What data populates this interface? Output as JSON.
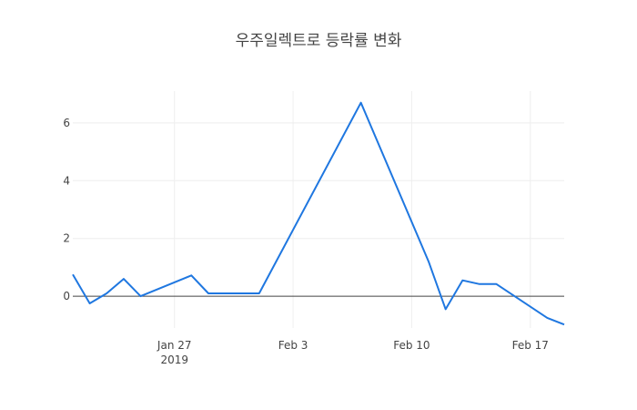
{
  "chart_data": {
    "type": "line",
    "title": "우주일렉트로 등락률 변화",
    "xlabel": "",
    "ylabel": "",
    "x_range": [
      "2019-01-21",
      "2019-02-19"
    ],
    "y_range": [
      -1.1,
      7.1
    ],
    "x_ticks": [
      {
        "date": "2019-01-27",
        "label": "Jan 27",
        "sublabel": "2019"
      },
      {
        "date": "2019-02-03",
        "label": "Feb 3",
        "sublabel": ""
      },
      {
        "date": "2019-02-10",
        "label": "Feb 10",
        "sublabel": ""
      },
      {
        "date": "2019-02-17",
        "label": "Feb 17",
        "sublabel": ""
      }
    ],
    "y_ticks": [
      0,
      2,
      4,
      6
    ],
    "grid": true,
    "series": [
      {
        "color": "#1f77e0",
        "points": [
          {
            "x": "2019-01-21",
            "y": 0.75
          },
          {
            "x": "2019-01-22",
            "y": -0.25
          },
          {
            "x": "2019-01-23",
            "y": 0.1
          },
          {
            "x": "2019-01-24",
            "y": 0.6
          },
          {
            "x": "2019-01-25",
            "y": 0.0
          },
          {
            "x": "2019-01-28",
            "y": 0.72
          },
          {
            "x": "2019-01-29",
            "y": 0.1
          },
          {
            "x": "2019-02-01",
            "y": 0.1
          },
          {
            "x": "2019-02-07",
            "y": 6.7
          },
          {
            "x": "2019-02-11",
            "y": 1.2
          },
          {
            "x": "2019-02-12",
            "y": -0.45
          },
          {
            "x": "2019-02-13",
            "y": 0.55
          },
          {
            "x": "2019-02-14",
            "y": 0.42
          },
          {
            "x": "2019-02-15",
            "y": 0.42
          },
          {
            "x": "2019-02-18",
            "y": -0.75
          },
          {
            "x": "2019-02-19",
            "y": -0.98
          }
        ]
      }
    ]
  }
}
